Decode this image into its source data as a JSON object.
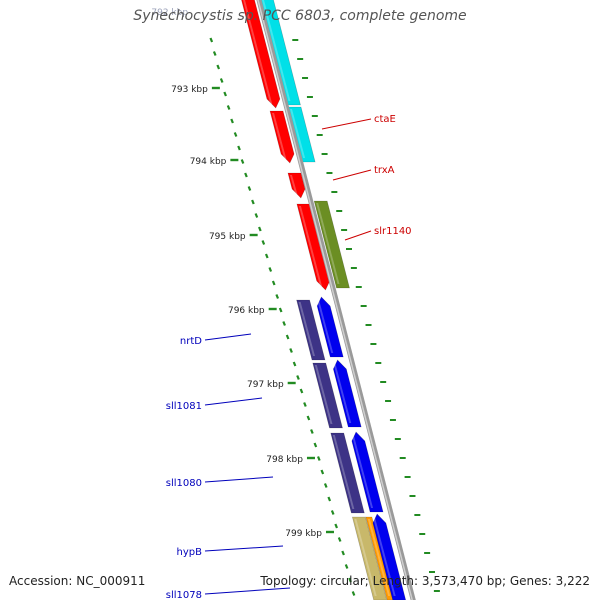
{
  "title": "Synechocystis sp. PCC 6803, complete genome",
  "footer": {
    "accession": "Accession: NC_000911",
    "topology": "Topology: circular; Length: 3,573,470 bp; Genes: 3,222"
  },
  "colors": {
    "backbone": "#8a8a8a",
    "ruler_tick": "#228b22",
    "label_red": "#cc0000",
    "label_blue": "#0000bb",
    "red": "#ff0000",
    "cyan": "#00e0e8",
    "olive": "#6b8e23",
    "navy": "#3d3386",
    "blue": "#0000ee",
    "tan": "#c8b86a",
    "orange": "#ff9a00"
  },
  "ruler": {
    "partial_label": "792 kbp",
    "labels": [
      "793 kbp",
      "794 kbp",
      "795 kbp",
      "796 kbp",
      "797 kbp",
      "798 kbp",
      "799 kbp"
    ]
  },
  "genes": {
    "right": [
      "ctaE",
      "trxA",
      "slr1140"
    ],
    "left": [
      "nrtD",
      "sll1081",
      "sll1080",
      "hypB",
      "sll1078"
    ]
  }
}
